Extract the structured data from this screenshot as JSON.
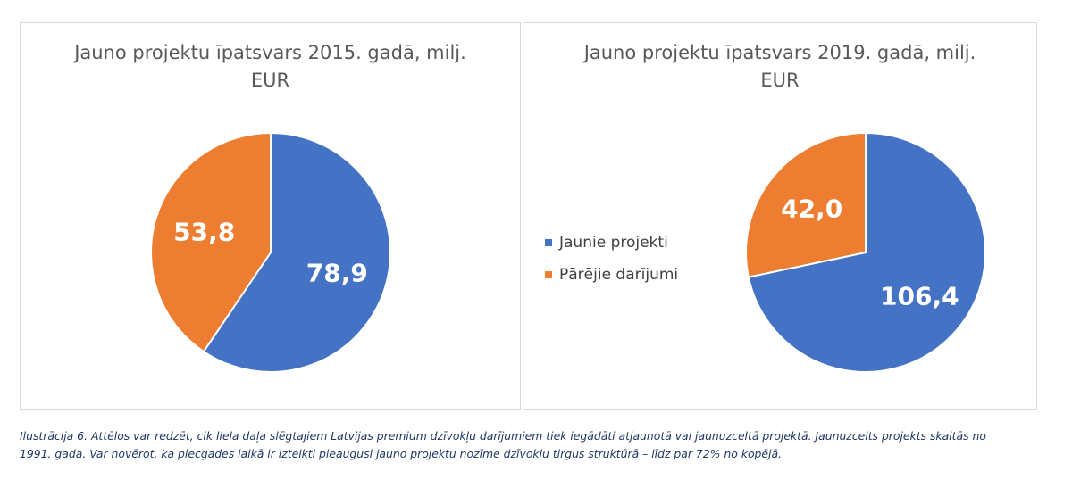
{
  "chart_data": [
    {
      "type": "pie",
      "title_lines": [
        "Jauno projektu īpatsvars 2015. gadā, milj.",
        "EUR"
      ],
      "slices": [
        {
          "label": "Jaunie projekti",
          "value": 78.9,
          "display": "78,9",
          "color": "#4472c4"
        },
        {
          "label": "Pārējie darījumi",
          "value": 53.8,
          "display": "53,8",
          "color": "#ed7d31"
        }
      ],
      "legend": "none"
    },
    {
      "type": "pie",
      "title_lines": [
        "Jauno projektu īpatsvars 2019. gadā, milj.",
        "EUR"
      ],
      "slices": [
        {
          "label": "Jaunie projekti",
          "value": 106.4,
          "display": "106,4",
          "color": "#4472c4"
        },
        {
          "label": "Pārējie darījumi",
          "value": 42.0,
          "display": "42,0",
          "color": "#ed7d31"
        }
      ],
      "legend": "left",
      "legend_entries": [
        {
          "label": "Jaunie projekti",
          "color": "#4472c4"
        },
        {
          "label": "Pārējie darījumi",
          "color": "#ed7d31"
        }
      ]
    }
  ],
  "caption": {
    "line1": "Ilustrācija 6. Attēlos var redzēt, cik liela daļa slēgtajiem Latvijas premium dzīvokļu darījumiem tiek iegādāti atjaunotā vai jaunuzceltā projektā. Jaunuzcelts projekts skaitās no",
    "line2": "1991. gada. Var novērot,  ka piecgades laikā ir izteikti pieaugusi jauno projektu nozīme dzīvokļu tirgus struktūrā – līdz par 72% no kopējā."
  }
}
